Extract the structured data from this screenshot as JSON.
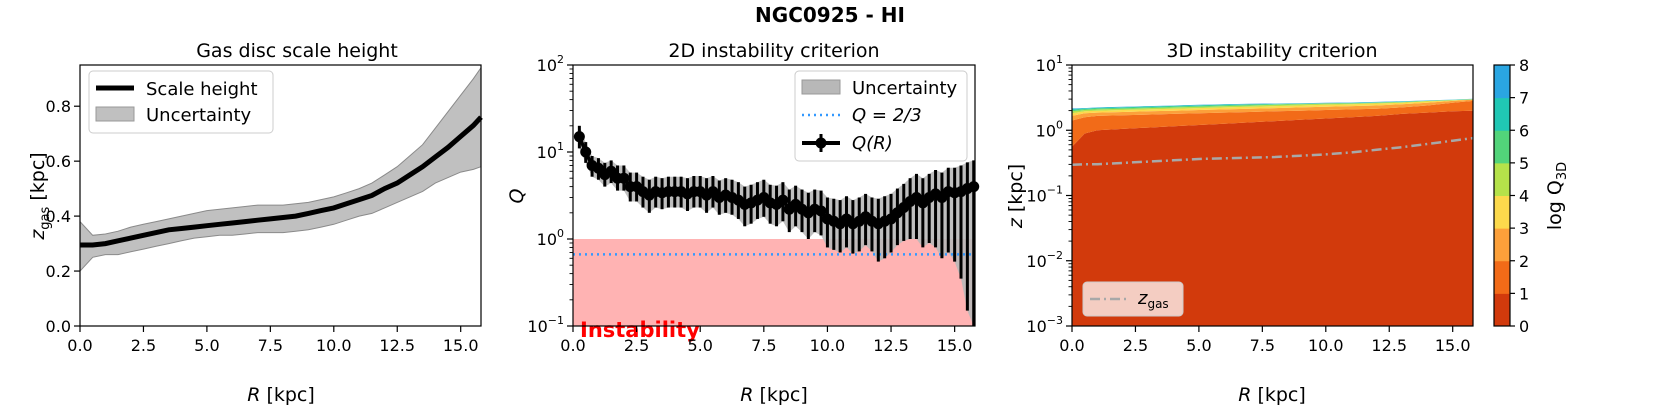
{
  "suptitle": "NGC0925 - HI",
  "chart_data": [
    {
      "type": "line",
      "title": "Gas disc scale height",
      "xlabel_italic": "R",
      "xlabel_unit": " [kpc]",
      "ylabel_main": "z",
      "ylabel_sub": "gas",
      "ylabel_unit": " [kpc]",
      "xlim": [
        0,
        15.8
      ],
      "ylim": [
        0,
        0.95
      ],
      "xticks": [
        0,
        2.5,
        5,
        7.5,
        10,
        12.5,
        15
      ],
      "xtick_labels": [
        "0.0",
        "2.5",
        "5.0",
        "7.5",
        "10.0",
        "12.5",
        "15.0"
      ],
      "yticks": [
        0,
        0.2,
        0.4,
        0.6,
        0.8
      ],
      "ytick_labels": [
        "0.0",
        "0.2",
        "0.4",
        "0.6",
        "0.8"
      ],
      "legend": [
        "Scale height",
        "Uncertainty"
      ],
      "x": [
        0,
        0.5,
        1,
        1.5,
        2,
        2.5,
        3,
        3.5,
        4,
        4.5,
        5,
        5.5,
        6,
        6.5,
        7,
        7.5,
        8,
        8.5,
        9,
        9.5,
        10,
        10.5,
        11,
        11.5,
        12,
        12.5,
        13,
        13.5,
        14,
        14.5,
        15,
        15.5,
        15.8
      ],
      "scale_height": [
        0.295,
        0.295,
        0.3,
        0.31,
        0.32,
        0.33,
        0.34,
        0.35,
        0.355,
        0.36,
        0.365,
        0.37,
        0.375,
        0.38,
        0.385,
        0.39,
        0.395,
        0.4,
        0.41,
        0.42,
        0.43,
        0.445,
        0.46,
        0.475,
        0.5,
        0.52,
        0.55,
        0.58,
        0.615,
        0.65,
        0.69,
        0.73,
        0.76
      ],
      "upper": [
        0.38,
        0.33,
        0.335,
        0.345,
        0.36,
        0.37,
        0.38,
        0.39,
        0.4,
        0.41,
        0.42,
        0.425,
        0.43,
        0.435,
        0.44,
        0.44,
        0.44,
        0.445,
        0.45,
        0.46,
        0.47,
        0.485,
        0.5,
        0.52,
        0.55,
        0.58,
        0.62,
        0.66,
        0.72,
        0.78,
        0.84,
        0.9,
        0.94
      ],
      "lower": [
        0.2,
        0.25,
        0.26,
        0.26,
        0.27,
        0.28,
        0.29,
        0.3,
        0.31,
        0.32,
        0.325,
        0.33,
        0.33,
        0.335,
        0.34,
        0.34,
        0.34,
        0.345,
        0.35,
        0.36,
        0.37,
        0.385,
        0.4,
        0.41,
        0.43,
        0.45,
        0.47,
        0.49,
        0.52,
        0.54,
        0.56,
        0.57,
        0.58
      ],
      "colors": {
        "line": "#000000",
        "band": "#c0c0c0"
      }
    },
    {
      "type": "scatter",
      "title": "2D instability criterion",
      "xlabel_italic": "R",
      "xlabel_unit": " [kpc]",
      "ylabel_main": "Q",
      "xlim": [
        0,
        15.8
      ],
      "ylim_log": [
        -1,
        2
      ],
      "xticks": [
        0,
        2.5,
        5,
        7.5,
        10,
        12.5,
        15
      ],
      "xtick_labels": [
        "0.0",
        "2.5",
        "5.0",
        "7.5",
        "10.0",
        "12.5",
        "15.0"
      ],
      "yticks_log": [
        -1,
        0,
        1,
        2
      ],
      "ytick_bases": [
        "10",
        "10",
        "10",
        "10"
      ],
      "ytick_exps": [
        "−1",
        "0",
        "1",
        "2"
      ],
      "legend": [
        "Uncertainty",
        "Q = 2/3",
        "Q(R)"
      ],
      "instability_label": "Instability",
      "threshold": 0.6667,
      "instability_upper": 1.0,
      "x": [
        0.25,
        0.5,
        0.75,
        1,
        1.25,
        1.5,
        1.75,
        2,
        2.25,
        2.5,
        2.75,
        3,
        3.25,
        3.5,
        3.75,
        4,
        4.25,
        4.5,
        4.75,
        5,
        5.25,
        5.5,
        5.75,
        6,
        6.25,
        6.5,
        6.75,
        7,
        7.25,
        7.5,
        7.75,
        8,
        8.25,
        8.5,
        8.75,
        9,
        9.25,
        9.5,
        9.75,
        10,
        10.25,
        10.5,
        10.75,
        11,
        11.25,
        11.5,
        11.75,
        12,
        12.25,
        12.5,
        12.75,
        13,
        13.25,
        13.5,
        13.75,
        14,
        14.25,
        14.5,
        14.75,
        15,
        15.25,
        15.5,
        15.75
      ],
      "q": [
        15,
        10,
        7,
        6.5,
        5.5,
        6,
        5,
        5,
        4,
        4,
        3.5,
        3.2,
        3.5,
        3.4,
        3.5,
        3.5,
        3.5,
        3.3,
        3.5,
        3.5,
        3.2,
        3.5,
        3.0,
        3.2,
        3.0,
        2.8,
        2.5,
        2.6,
        2.8,
        3.0,
        2.6,
        2.5,
        2.8,
        2.2,
        2.5,
        2.2,
        2.0,
        2.2,
        2.1,
        1.7,
        1.6,
        1.5,
        1.7,
        1.5,
        1.6,
        1.8,
        1.6,
        1.5,
        1.6,
        1.7,
        2.0,
        2.3,
        2.7,
        3.0,
        2.6,
        3.0,
        3.3,
        3.0,
        3.5,
        3.4,
        3.5,
        3.8,
        4.0
      ],
      "q_err_up": [
        20,
        13,
        9,
        8.5,
        7.5,
        8,
        7,
        7,
        5.8,
        5.8,
        5.2,
        4.8,
        5.2,
        5.0,
        5.2,
        5.2,
        5.2,
        5.0,
        5.3,
        5.3,
        5.0,
        5.3,
        4.7,
        5.0,
        4.8,
        4.5,
        4.0,
        4.2,
        4.5,
        4.8,
        4.2,
        4.1,
        4.5,
        3.7,
        4.1,
        3.7,
        3.4,
        3.7,
        3.6,
        3.0,
        2.9,
        2.8,
        3.1,
        2.8,
        3.0,
        3.3,
        3.0,
        2.9,
        3.1,
        3.3,
        3.8,
        4.3,
        5.0,
        5.6,
        5.0,
        5.6,
        6.2,
        5.8,
        6.6,
        6.6,
        7.0,
        7.6,
        8.0
      ],
      "q_err_lo": [
        11,
        7.5,
        5.2,
        4.8,
        4.0,
        4.4,
        3.6,
        3.6,
        2.7,
        2.7,
        2.3,
        2.0,
        2.3,
        2.2,
        2.3,
        2.3,
        2.3,
        2.1,
        2.3,
        2.3,
        2.0,
        2.3,
        1.9,
        2.0,
        1.9,
        1.7,
        1.4,
        1.5,
        1.7,
        1.8,
        1.5,
        1.4,
        1.6,
        1.2,
        1.4,
        1.2,
        1.0,
        1.2,
        1.1,
        0.8,
        0.75,
        0.7,
        0.8,
        0.68,
        0.72,
        0.85,
        0.72,
        0.55,
        0.6,
        0.7,
        0.85,
        0.95,
        1.0,
        1.0,
        0.8,
        0.9,
        0.8,
        0.6,
        0.7,
        0.55,
        0.35,
        0.15,
        0.1
      ],
      "colors": {
        "marker": "#000000",
        "band": "#b8b8b8",
        "threshold": "#3399ff",
        "instability": "#ffb3b3",
        "instability_text": "#ff0000"
      }
    },
    {
      "type": "heatmap",
      "title": "3D instability criterion",
      "xlabel_italic": "R",
      "xlabel_unit": " [kpc]",
      "ylabel_main": "z",
      "ylabel_unit": " [kpc]",
      "xlim": [
        0,
        15.8
      ],
      "ylim_log": [
        -3,
        1
      ],
      "xticks": [
        0,
        2.5,
        5,
        7.5,
        10,
        12.5,
        15
      ],
      "xtick_labels": [
        "0.0",
        "2.5",
        "5.0",
        "7.5",
        "10.0",
        "12.5",
        "15.0"
      ],
      "yticks_log": [
        -3,
        -2,
        -1,
        0,
        1
      ],
      "ytick_bases": [
        "10",
        "10",
        "10",
        "10",
        "10"
      ],
      "ytick_exps": [
        "−3",
        "−2",
        "−1",
        "0",
        "1"
      ],
      "legend": [
        "z_gas"
      ],
      "legend_main": "z",
      "legend_sub": "gas",
      "colorbar_label_main": "log Q",
      "colorbar_label_sub": "3D",
      "colorbar_ticks": [
        "0",
        "1",
        "2",
        "3",
        "4",
        "5",
        "6",
        "7",
        "8"
      ],
      "colorbar_colors": [
        "#d23a0c",
        "#f26b18",
        "#fca03a",
        "#fcd94c",
        "#b5e24a",
        "#52d47a",
        "#20c7b4",
        "#2aa6e2"
      ],
      "x": [
        0,
        0.5,
        1,
        2,
        3,
        4,
        5,
        6,
        7,
        8,
        9,
        10,
        11,
        12,
        13,
        14,
        15,
        15.8
      ],
      "level_tops_log": [
        [
          -0.25,
          -0.05,
          0.0,
          0.02,
          0.04,
          0.06,
          0.08,
          0.1,
          0.12,
          0.14,
          0.16,
          0.18,
          0.2,
          0.22,
          0.25,
          0.27,
          0.29,
          0.3
        ],
        [
          0.15,
          0.2,
          0.22,
          0.23,
          0.24,
          0.25,
          0.26,
          0.27,
          0.28,
          0.29,
          0.3,
          0.31,
          0.32,
          0.33,
          0.35,
          0.38,
          0.42,
          0.45
        ],
        [
          0.22,
          0.26,
          0.27,
          0.28,
          0.29,
          0.3,
          0.31,
          0.32,
          0.33,
          0.34,
          0.35,
          0.36,
          0.37,
          0.38,
          0.4,
          0.42,
          0.45,
          0.47
        ],
        [
          0.26,
          0.29,
          0.3,
          0.31,
          0.32,
          0.33,
          0.34,
          0.35,
          0.36,
          0.37,
          0.38,
          0.39,
          0.4,
          0.41,
          0.42,
          0.44,
          0.46,
          0.47
        ],
        [
          0.29,
          0.31,
          0.32,
          0.33,
          0.34,
          0.35,
          0.36,
          0.37,
          0.38,
          0.39,
          0.4,
          0.41,
          0.41,
          0.42,
          0.43,
          0.45,
          0.46,
          0.475
        ],
        [
          0.31,
          0.325,
          0.335,
          0.345,
          0.355,
          0.365,
          0.375,
          0.385,
          0.395,
          0.4,
          0.405,
          0.41,
          0.415,
          0.425,
          0.435,
          0.45,
          0.465,
          0.478
        ],
        [
          0.325,
          0.335,
          0.345,
          0.355,
          0.365,
          0.375,
          0.385,
          0.395,
          0.4,
          0.405,
          0.41,
          0.415,
          0.42,
          0.43,
          0.44,
          0.455,
          0.468,
          0.48
        ],
        [
          0.335,
          0.34,
          0.35,
          0.36,
          0.37,
          0.38,
          0.39,
          0.4,
          0.405,
          0.41,
          0.415,
          0.42,
          0.425,
          0.435,
          0.445,
          0.458,
          0.47,
          0.482
        ]
      ],
      "zgas_log": [
        -0.53,
        -0.52,
        -0.52,
        -0.5,
        -0.48,
        -0.46,
        -0.44,
        -0.43,
        -0.42,
        -0.41,
        -0.39,
        -0.37,
        -0.34,
        -0.3,
        -0.26,
        -0.21,
        -0.16,
        -0.12
      ],
      "colors": {
        "zgas": "#a8a8a8"
      }
    }
  ]
}
